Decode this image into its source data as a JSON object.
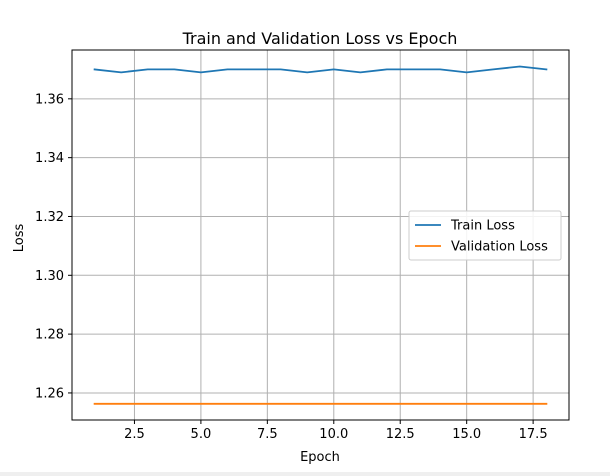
{
  "chart_data": {
    "type": "line",
    "title": "Train and Validation Loss vs Epoch",
    "xlabel": "Epoch",
    "ylabel": "Loss",
    "xlim": [
      0.15,
      18.85
    ],
    "ylim": [
      1.2508,
      1.3766
    ],
    "xticks": [
      2.5,
      5.0,
      7.5,
      10.0,
      12.5,
      15.0,
      17.5
    ],
    "xtick_labels": [
      "2.5",
      "5.0",
      "7.5",
      "10.0",
      "12.5",
      "15.0",
      "17.5"
    ],
    "yticks": [
      1.26,
      1.28,
      1.3,
      1.32,
      1.34,
      1.36
    ],
    "ytick_labels": [
      "1.26",
      "1.28",
      "1.30",
      "1.32",
      "1.34",
      "1.36"
    ],
    "grid": true,
    "legend_position": "center-right",
    "x": [
      1,
      2,
      3,
      4,
      5,
      6,
      7,
      8,
      9,
      10,
      11,
      12,
      13,
      14,
      15,
      16,
      17,
      18
    ],
    "series": [
      {
        "name": "Train Loss",
        "color": "#1f77b4",
        "values": [
          1.37,
          1.369,
          1.37,
          1.37,
          1.369,
          1.37,
          1.37,
          1.37,
          1.369,
          1.37,
          1.369,
          1.37,
          1.37,
          1.37,
          1.369,
          1.37,
          1.371,
          1.37
        ]
      },
      {
        "name": "Validation Loss",
        "color": "#ff7f0e",
        "values": [
          1.2563,
          1.2563,
          1.2563,
          1.2563,
          1.2563,
          1.2563,
          1.2563,
          1.2563,
          1.2563,
          1.2563,
          1.2563,
          1.2563,
          1.2563,
          1.2563,
          1.2563,
          1.2563,
          1.2563,
          1.2563
        ]
      }
    ]
  }
}
